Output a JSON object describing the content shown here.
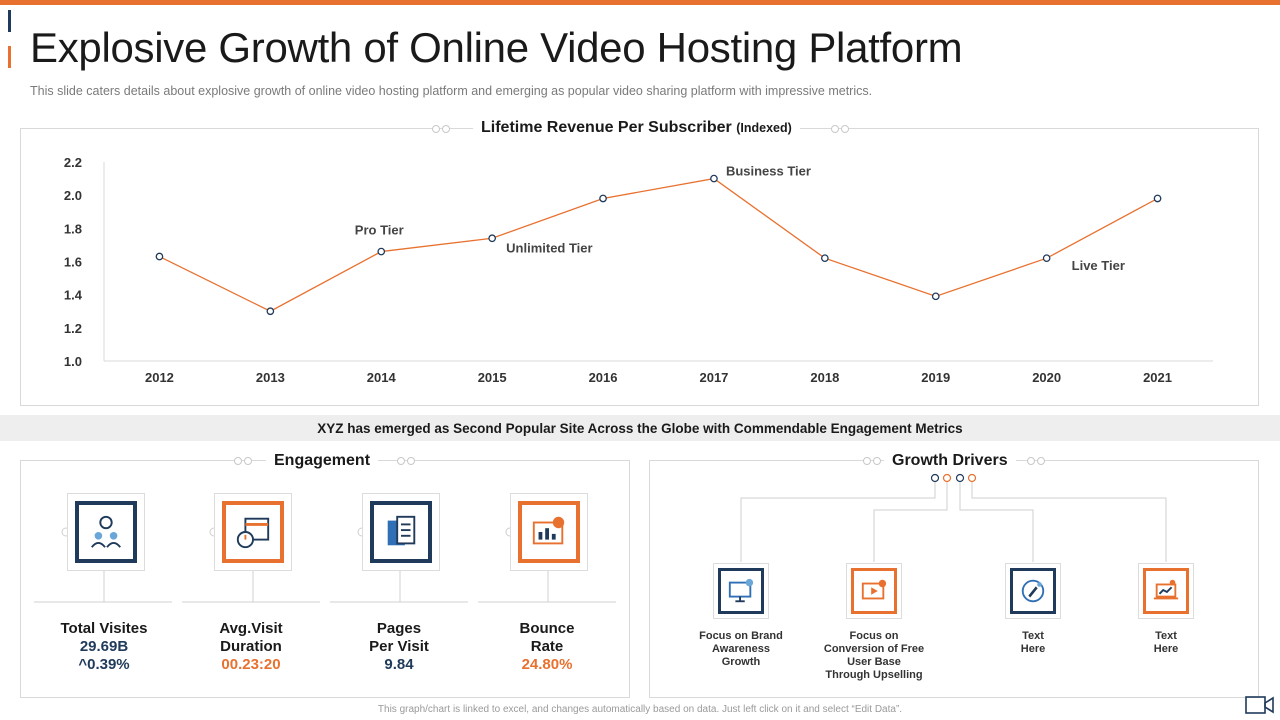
{
  "header": {
    "title": "Explosive Growth of Online Video Hosting Platform",
    "subtitle": "This slide caters details about explosive growth of online video hosting platform and emerging as popular video sharing platform with impressive metrics."
  },
  "chart_heading": {
    "main": "Lifetime Revenue Per Subscriber",
    "suffix": "(Indexed)"
  },
  "chart_data": {
    "type": "line",
    "title": "Lifetime Revenue Per Subscriber (Indexed)",
    "x": [
      "2012",
      "2013",
      "2014",
      "2015",
      "2016",
      "2017",
      "2018",
      "2019",
      "2020",
      "2021"
    ],
    "series": [
      {
        "values": [
          1.63,
          1.3,
          1.66,
          1.74,
          1.98,
          2.1,
          1.62,
          1.39,
          1.62,
          1.98
        ]
      }
    ],
    "ylim": [
      1.0,
      2.2
    ],
    "yticks": [
      "1.0",
      "1.2",
      "1.4",
      "1.6",
      "1.8",
      "2.0",
      "2.2"
    ],
    "annotations": [
      {
        "text": "Pro Tier",
        "x": "2014"
      },
      {
        "text": "Unlimited Tier",
        "x": "2015"
      },
      {
        "text": "Business  Tier",
        "x": "2017"
      },
      {
        "text": "Live Tier",
        "x": "2020"
      }
    ],
    "line_color": "#e8712f",
    "marker_color": "#1f3a5a",
    "grid": false
  },
  "band_text": "XYZ has emerged as Second Popular Site Across the Globe with Commendable Engagement Metrics",
  "engagement": {
    "heading": "Engagement",
    "metrics": [
      {
        "label1": "Total Visites",
        "label2": "",
        "value": "29.69B",
        "value2": "^0.39%",
        "icon": "visitors-icon",
        "color": "navy"
      },
      {
        "label1": "Avg.Visit",
        "label2": "Duration",
        "value": "00.23:20",
        "value2": "",
        "icon": "stopwatch-calendar-icon",
        "color": "orange"
      },
      {
        "label1": "Pages",
        "label2": "Per Visit",
        "value": "9.84",
        "value2": "",
        "icon": "pages-icon",
        "color": "navy"
      },
      {
        "label1": "Bounce",
        "label2": "Rate",
        "value": "24.80%",
        "value2": "",
        "icon": "analytics-screen-icon",
        "color": "orange"
      }
    ]
  },
  "growth_drivers": {
    "heading": "Growth Drivers",
    "items": [
      {
        "label": [
          "Focus on Brand",
          "Awareness",
          "Growth"
        ],
        "icon": "brand-monitor-icon",
        "color": "navy"
      },
      {
        "label": [
          "Focus on",
          "Conversion of Free",
          "User Base",
          "Through Upselling"
        ],
        "icon": "video-upsell-icon",
        "color": "orange"
      },
      {
        "label": [
          "Text",
          "Here"
        ],
        "icon": "rocket-icon",
        "color": "navy"
      },
      {
        "label": [
          "Text",
          "Here"
        ],
        "icon": "laptop-growth-icon",
        "color": "orange"
      }
    ]
  },
  "footer": "This graph/chart is linked to excel, and changes automatically based on data. Just left click on it and select “Edit Data”."
}
